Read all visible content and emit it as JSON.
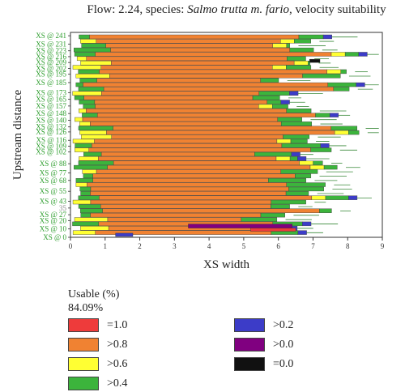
{
  "title": {
    "prefix": "Flow: 2.24, species: ",
    "species": "Salmo trutta m. fario",
    "suffix": ", velocity suitability"
  },
  "chart_data": {
    "type": "bar",
    "orientation": "horizontal-stacked-segments",
    "xlabel": "XS width",
    "ylabel": "Upstream distance",
    "xlim": [
      0,
      9
    ],
    "x_ticks": [
      "0",
      "1",
      "2",
      "3",
      "4",
      "5",
      "6",
      "7",
      "8",
      "9"
    ],
    "ylim": [
      0,
      245
    ],
    "y_ticks": [
      {
        "label": "XS @ 241",
        "value": 241
      },
      {
        "label": "XS @ 231",
        "value": 231
      },
      {
        "label": "XS @ 223",
        "value": 223
      },
      {
        "label": "XS @ 216",
        "value": 216
      },
      {
        "label": "XS @ 209",
        "value": 209
      },
      {
        "label": "XS @ 202",
        "value": 202
      },
      {
        "label": "XS @ 195",
        "value": 195
      },
      {
        "label": "XS @ 185",
        "value": 185
      },
      {
        "label": "XS @ 173",
        "value": 173
      },
      {
        "label": "XS @ 165",
        "value": 165
      },
      {
        "label": "XS @ 157",
        "value": 157
      },
      {
        "label": "XS @ 148",
        "value": 148
      },
      {
        "label": "XS @ 140",
        "value": 140
      },
      {
        "label": "XS @ 132",
        "value": 132
      },
      {
        "label": "XS @ 126",
        "value": 126
      },
      {
        "label": "XS @ 116",
        "value": 116
      },
      {
        "label": "XS @ 109",
        "value": 109
      },
      {
        "label": "XS @ 102",
        "value": 102
      },
      {
        "label": "XS @ 88",
        "value": 88
      },
      {
        "label": "XS @ 77",
        "value": 77
      },
      {
        "label": "XS @ 68",
        "value": 68
      },
      {
        "label": "XS @ 55",
        "value": 55
      },
      {
        "label": "XS @ 43",
        "value": 43
      },
      {
        "label": "35",
        "value": 35
      },
      {
        "label": "XS @ 27",
        "value": 27
      },
      {
        "label": "XS @ 20",
        "value": 20
      },
      {
        "label": "XS @ 10",
        "value": 10
      },
      {
        "label": "XS @ 0",
        "value": 0
      }
    ],
    "categories": [
      "=1.0",
      ">0.8",
      ">0.6",
      ">0.4",
      ">0.2",
      ">0.0",
      "=0.0"
    ],
    "colors": {
      "=1.0": "#ee3b3b",
      ">0.8": "#f08232",
      ">0.6": "#ffff33",
      ">0.4": "#3cb43c",
      ">0.2": "#3c3cc8",
      ">0.0": "#800080",
      "=0.0": "#111111"
    },
    "grid": false,
    "legend_position": "bottom"
  },
  "legend": {
    "usable_label": "Usable (%)",
    "usable_value": "84.09%",
    "items": [
      {
        "label": "=1.0",
        "color": "#ee3b3b"
      },
      {
        "label": ">0.8",
        "color": "#f08232"
      },
      {
        "label": ">0.6",
        "color": "#ffff33"
      },
      {
        "label": ">0.4",
        "color": "#3cb43c"
      },
      {
        "label": ">0.2",
        "color": "#3c3cc8"
      },
      {
        "label": ">0.0",
        "color": "#800080"
      },
      {
        "label": "=0.0",
        "color": "#111111"
      }
    ]
  }
}
